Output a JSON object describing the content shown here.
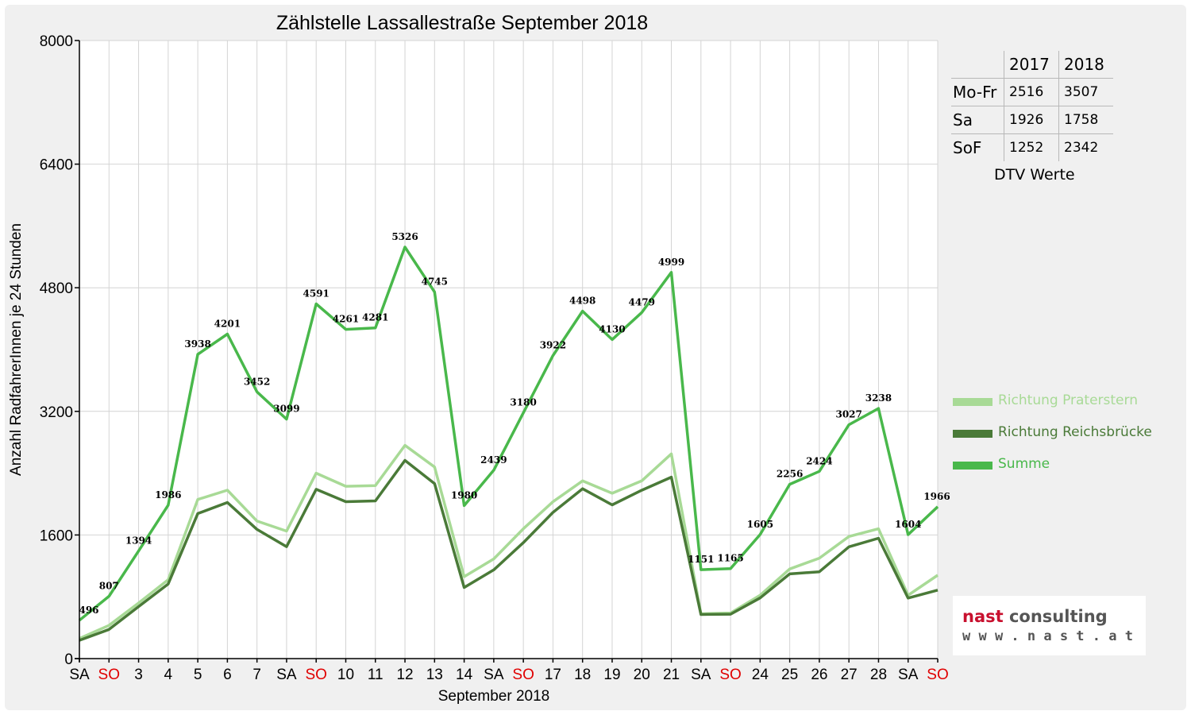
{
  "chart_data": {
    "type": "line",
    "title": "Zählstelle Lassallestraße September 2018",
    "xlabel": "September 2018",
    "ylabel": "Anzahl RadfahrerInnen je 24 Stunden",
    "ylim": [
      0,
      8000
    ],
    "yticks": [
      "0",
      "1600",
      "3200",
      "4800",
      "6400",
      "8000"
    ],
    "grid": true,
    "legend_position": "right",
    "categories": [
      "SA",
      "SO",
      "3",
      "4",
      "5",
      "6",
      "7",
      "SA",
      "SO",
      "10",
      "11",
      "12",
      "13",
      "14",
      "SA",
      "SO",
      "17",
      "18",
      "19",
      "20",
      "21",
      "SA",
      "SO",
      "24",
      "25",
      "26",
      "27",
      "28",
      "SA",
      "SO"
    ],
    "weekend_flags": [
      "sa",
      "so",
      "",
      "",
      "",
      "",
      "",
      "sa",
      "so",
      "",
      "",
      "",
      "",
      "",
      "sa",
      "so",
      "",
      "",
      "",
      "",
      "",
      "sa",
      "so",
      "",
      "",
      "",
      "",
      "",
      "sa",
      "so"
    ],
    "series": [
      {
        "name": "Richtung Praterstern",
        "color": "#a8da96",
        "values": [
          260,
          430,
          720,
          1020,
          2060,
          2180,
          1780,
          1650,
          2400,
          2230,
          2240,
          2760,
          2480,
          1060,
          1290,
          1680,
          2030,
          2300,
          2140,
          2300,
          2650,
          580,
          590,
          820,
          1160,
          1300,
          1580,
          1680,
          820,
          1080
        ]
      },
      {
        "name": "Richtung Reichsbrücke",
        "color": "#4a7a38",
        "values": [
          236,
          377,
          674,
          966,
          1878,
          2021,
          1672,
          1449,
          2191,
          2031,
          2041,
          2566,
          2265,
          920,
          1149,
          1500,
          1892,
          2198,
          1990,
          2179,
          2349,
          571,
          575,
          785,
          1096,
          1124,
          1447,
          1558,
          784,
          886
        ]
      },
      {
        "name": "Summe",
        "color": "#49b84b",
        "values": [
          496,
          807,
          1394,
          1986,
          3938,
          4201,
          3452,
          3099,
          4591,
          4261,
          4281,
          5326,
          4745,
          1980,
          2439,
          3180,
          3922,
          4498,
          4130,
          4479,
          4999,
          1151,
          1165,
          1605,
          2256,
          2424,
          3027,
          3238,
          1604,
          1966
        ]
      }
    ],
    "data_labels": [
      "496",
      "807",
      "1394",
      "1986",
      "3938",
      "4201",
      "3452",
      "3099",
      "4591",
      "4261",
      "4281",
      "5326",
      "4745",
      "1980",
      "2439",
      "3180",
      "3922",
      "4498",
      "4130",
      "4479",
      "4999",
      "1151",
      "1165",
      "1605",
      "2256",
      "2424",
      "3027",
      "3238",
      "1604",
      "1966"
    ]
  },
  "dtv_table": {
    "columns": [
      "2017",
      "2018"
    ],
    "rows": [
      {
        "label": "Mo-Fr",
        "v2017": "2516",
        "v2018": "3507"
      },
      {
        "label": "Sa",
        "v2017": "1926",
        "v2018": "1758"
      },
      {
        "label": "SoF",
        "v2017": "1252",
        "v2018": "2342"
      }
    ],
    "caption": "DTV Werte"
  },
  "logo": {
    "line1_part1": "nast",
    "line1_part2": " consulting",
    "line2": "w w w . n a s t . a t",
    "color_red": "#c8102e",
    "color_gray": "#555555"
  },
  "colors": {
    "weekday_text": "#000000",
    "sunday_text": "#e00000"
  }
}
